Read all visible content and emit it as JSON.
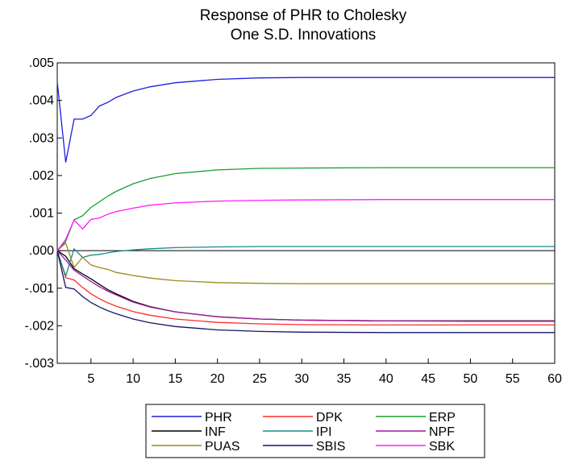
{
  "chart_data": {
    "type": "line",
    "title": "Response of PHR to Cholesky",
    "subtitle": "One S.D. Innovations",
    "xlabel": "",
    "ylabel": "",
    "xlim": [
      1,
      60
    ],
    "ylim": [
      -0.003,
      0.005
    ],
    "x_ticks": [
      5,
      10,
      15,
      20,
      25,
      30,
      35,
      40,
      45,
      50,
      55,
      60
    ],
    "x_tick_labels": [
      "5",
      "10",
      "15",
      "20",
      "25",
      "30",
      "35",
      "40",
      "45",
      "50",
      "55",
      "60"
    ],
    "y_ticks": [
      -0.003,
      -0.002,
      -0.001,
      0.0,
      0.001,
      0.002,
      0.003,
      0.004,
      0.005
    ],
    "y_tick_labels": [
      "-.003",
      "-.002",
      "-.001",
      ".000",
      ".001",
      ".002",
      ".003",
      ".004",
      ".005"
    ],
    "grid": false,
    "zero_line": true,
    "legend_position": "bottom",
    "series": [
      {
        "name": "PHR",
        "color": "#1f1fdc",
        "points": [
          [
            1,
            0.0045
          ],
          [
            2,
            0.00235
          ],
          [
            3,
            0.0035
          ],
          [
            4,
            0.0035
          ],
          [
            5,
            0.0036
          ],
          [
            6,
            0.00385
          ],
          [
            7,
            0.00395
          ],
          [
            8,
            0.00408
          ],
          [
            10,
            0.00425
          ],
          [
            12,
            0.00436
          ],
          [
            15,
            0.00447
          ],
          [
            20,
            0.00456
          ],
          [
            25,
            0.0046
          ],
          [
            30,
            0.00461
          ],
          [
            40,
            0.00461
          ],
          [
            50,
            0.00461
          ],
          [
            60,
            0.00461
          ]
        ]
      },
      {
        "name": "DPK",
        "color": "#ff2b2b",
        "points": [
          [
            1,
            0.0
          ],
          [
            2,
            -0.00072
          ],
          [
            3,
            -0.00078
          ],
          [
            4,
            -0.00098
          ],
          [
            5,
            -0.00115
          ],
          [
            6,
            -0.00128
          ],
          [
            7,
            -0.00139
          ],
          [
            8,
            -0.00148
          ],
          [
            10,
            -0.00162
          ],
          [
            12,
            -0.00172
          ],
          [
            15,
            -0.00182
          ],
          [
            20,
            -0.00191
          ],
          [
            25,
            -0.00195
          ],
          [
            30,
            -0.00197
          ],
          [
            40,
            -0.00198
          ],
          [
            50,
            -0.00198
          ],
          [
            60,
            -0.00198
          ]
        ]
      },
      {
        "name": "ERP",
        "color": "#1c9e30",
        "points": [
          [
            1,
            0.0
          ],
          [
            2,
            0.00025
          ],
          [
            3,
            0.00082
          ],
          [
            4,
            0.00093
          ],
          [
            5,
            0.00115
          ],
          [
            6,
            0.0013
          ],
          [
            7,
            0.00145
          ],
          [
            8,
            0.00158
          ],
          [
            10,
            0.00178
          ],
          [
            12,
            0.00192
          ],
          [
            15,
            0.00205
          ],
          [
            20,
            0.00215
          ],
          [
            25,
            0.00219
          ],
          [
            30,
            0.0022
          ],
          [
            40,
            0.00221
          ],
          [
            50,
            0.00221
          ],
          [
            60,
            0.00221
          ]
        ]
      },
      {
        "name": "INF",
        "color": "#000000",
        "points": [
          [
            1,
            0.0
          ],
          [
            2,
            -0.00015
          ],
          [
            3,
            -0.00048
          ],
          [
            4,
            -0.00062
          ],
          [
            5,
            -0.00075
          ],
          [
            6,
            -0.0009
          ],
          [
            7,
            -0.00104
          ],
          [
            8,
            -0.00115
          ],
          [
            10,
            -0.00135
          ],
          [
            12,
            -0.00149
          ],
          [
            15,
            -0.00163
          ],
          [
            20,
            -0.00176
          ],
          [
            25,
            -0.00182
          ],
          [
            30,
            -0.00185
          ],
          [
            40,
            -0.00187
          ],
          [
            50,
            -0.00187
          ],
          [
            60,
            -0.00187
          ]
        ]
      },
      {
        "name": "IPI",
        "color": "#1a8a8a",
        "points": [
          [
            1,
            0.0
          ],
          [
            2,
            -0.00068
          ],
          [
            3,
            5e-05
          ],
          [
            4,
            -0.00018
          ],
          [
            5,
            -0.00012
          ],
          [
            6,
            -0.0001
          ],
          [
            7,
            -6e-05
          ],
          [
            8,
            -2e-05
          ],
          [
            10,
            2e-05
          ],
          [
            12,
            5e-05
          ],
          [
            15,
            8e-05
          ],
          [
            20,
            0.0001
          ],
          [
            25,
            0.00011
          ],
          [
            30,
            0.00011
          ],
          [
            40,
            0.00011
          ],
          [
            50,
            0.00011
          ],
          [
            60,
            0.00011
          ]
        ]
      },
      {
        "name": "NPF",
        "color": "#9b1c9b",
        "points": [
          [
            1,
            0.0
          ],
          [
            2,
            -0.00025
          ],
          [
            3,
            -0.00052
          ],
          [
            4,
            -0.00067
          ],
          [
            5,
            -0.00082
          ],
          [
            6,
            -0.00096
          ],
          [
            7,
            -0.00108
          ],
          [
            8,
            -0.00118
          ],
          [
            10,
            -0.00137
          ],
          [
            12,
            -0.0015
          ],
          [
            15,
            -0.00163
          ],
          [
            20,
            -0.00176
          ],
          [
            25,
            -0.00182
          ],
          [
            30,
            -0.00185
          ],
          [
            40,
            -0.00187
          ],
          [
            50,
            -0.00188
          ],
          [
            60,
            -0.00188
          ]
        ]
      },
      {
        "name": "PUAS",
        "color": "#9a8a1a",
        "points": [
          [
            1,
            0.0
          ],
          [
            2,
            0.0002
          ],
          [
            3,
            -0.00045
          ],
          [
            4,
            -0.00018
          ],
          [
            5,
            -0.00038
          ],
          [
            6,
            -0.00045
          ],
          [
            7,
            -0.0005
          ],
          [
            8,
            -0.00058
          ],
          [
            10,
            -0.00066
          ],
          [
            12,
            -0.00073
          ],
          [
            15,
            -0.0008
          ],
          [
            20,
            -0.00085
          ],
          [
            25,
            -0.00087
          ],
          [
            30,
            -0.00088
          ],
          [
            40,
            -0.00088
          ],
          [
            50,
            -0.00088
          ],
          [
            60,
            -0.00088
          ]
        ]
      },
      {
        "name": "SBIS",
        "color": "#141466",
        "points": [
          [
            1,
            0.0
          ],
          [
            2,
            -0.00098
          ],
          [
            3,
            -0.00102
          ],
          [
            4,
            -0.00122
          ],
          [
            5,
            -0.00138
          ],
          [
            6,
            -0.0015
          ],
          [
            7,
            -0.0016
          ],
          [
            8,
            -0.00168
          ],
          [
            10,
            -0.00182
          ],
          [
            12,
            -0.00192
          ],
          [
            15,
            -0.00202
          ],
          [
            20,
            -0.00211
          ],
          [
            25,
            -0.00215
          ],
          [
            30,
            -0.00217
          ],
          [
            40,
            -0.00218
          ],
          [
            50,
            -0.00218
          ],
          [
            60,
            -0.00218
          ]
        ]
      },
      {
        "name": "SBK",
        "color": "#ff1dff",
        "points": [
          [
            1,
            0.0
          ],
          [
            2,
            0.0003
          ],
          [
            3,
            0.00082
          ],
          [
            4,
            0.00058
          ],
          [
            5,
            0.00083
          ],
          [
            6,
            0.00087
          ],
          [
            7,
            0.00097
          ],
          [
            8,
            0.00104
          ],
          [
            10,
            0.00113
          ],
          [
            12,
            0.00121
          ],
          [
            15,
            0.00127
          ],
          [
            20,
            0.00132
          ],
          [
            25,
            0.00134
          ],
          [
            30,
            0.00135
          ],
          [
            40,
            0.00136
          ],
          [
            50,
            0.00136
          ],
          [
            60,
            0.00136
          ]
        ]
      }
    ]
  }
}
